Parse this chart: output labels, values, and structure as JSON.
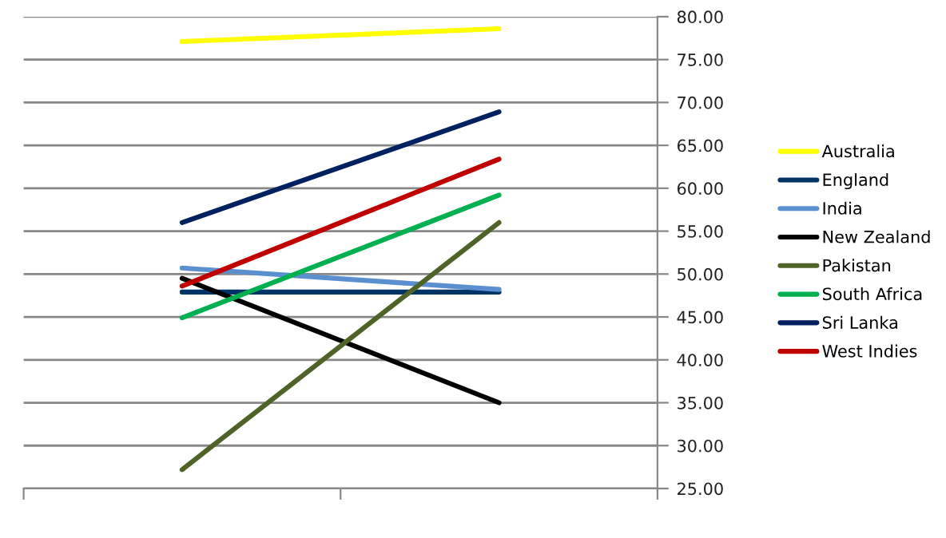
{
  "chart_data": {
    "type": "line",
    "categories": [
      null,
      null
    ],
    "series": [
      {
        "name": "Australia",
        "color": "#ffff00",
        "values": [
          77.1,
          78.6
        ]
      },
      {
        "name": "England",
        "color": "#003366",
        "values": [
          47.9,
          47.9
        ]
      },
      {
        "name": "India",
        "color": "#5b8fd0",
        "values": [
          50.7,
          48.2
        ]
      },
      {
        "name": "New Zealand",
        "color": "#000000",
        "values": [
          49.5,
          35.0
        ]
      },
      {
        "name": "Pakistan",
        "color": "#4f6228",
        "values": [
          27.2,
          56.0
        ]
      },
      {
        "name": "South Africa",
        "color": "#00b050",
        "values": [
          44.9,
          59.2
        ]
      },
      {
        "name": "Sri Lanka",
        "color": "#002060",
        "values": [
          56.0,
          68.9
        ]
      },
      {
        "name": "West Indies",
        "color": "#c00000",
        "values": [
          48.6,
          63.4
        ]
      }
    ],
    "ylim": [
      25,
      80
    ],
    "yticks": [
      {
        "value": 25,
        "label": "25.00"
      },
      {
        "value": 30,
        "label": "30.00"
      },
      {
        "value": 35,
        "label": "35.00"
      },
      {
        "value": 40,
        "label": "40.00"
      },
      {
        "value": 45,
        "label": "45.00"
      },
      {
        "value": 50,
        "label": "50.00"
      },
      {
        "value": 55,
        "label": "55.00"
      },
      {
        "value": 60,
        "label": "60.00"
      },
      {
        "value": 65,
        "label": "65.00"
      },
      {
        "value": 70,
        "label": "70.00"
      },
      {
        "value": 75,
        "label": "75.00"
      },
      {
        "value": 80,
        "label": "80.00"
      }
    ],
    "grid": "y",
    "legend": "right",
    "marker": "none",
    "line_style": "solid",
    "tick_labels": "y"
  }
}
